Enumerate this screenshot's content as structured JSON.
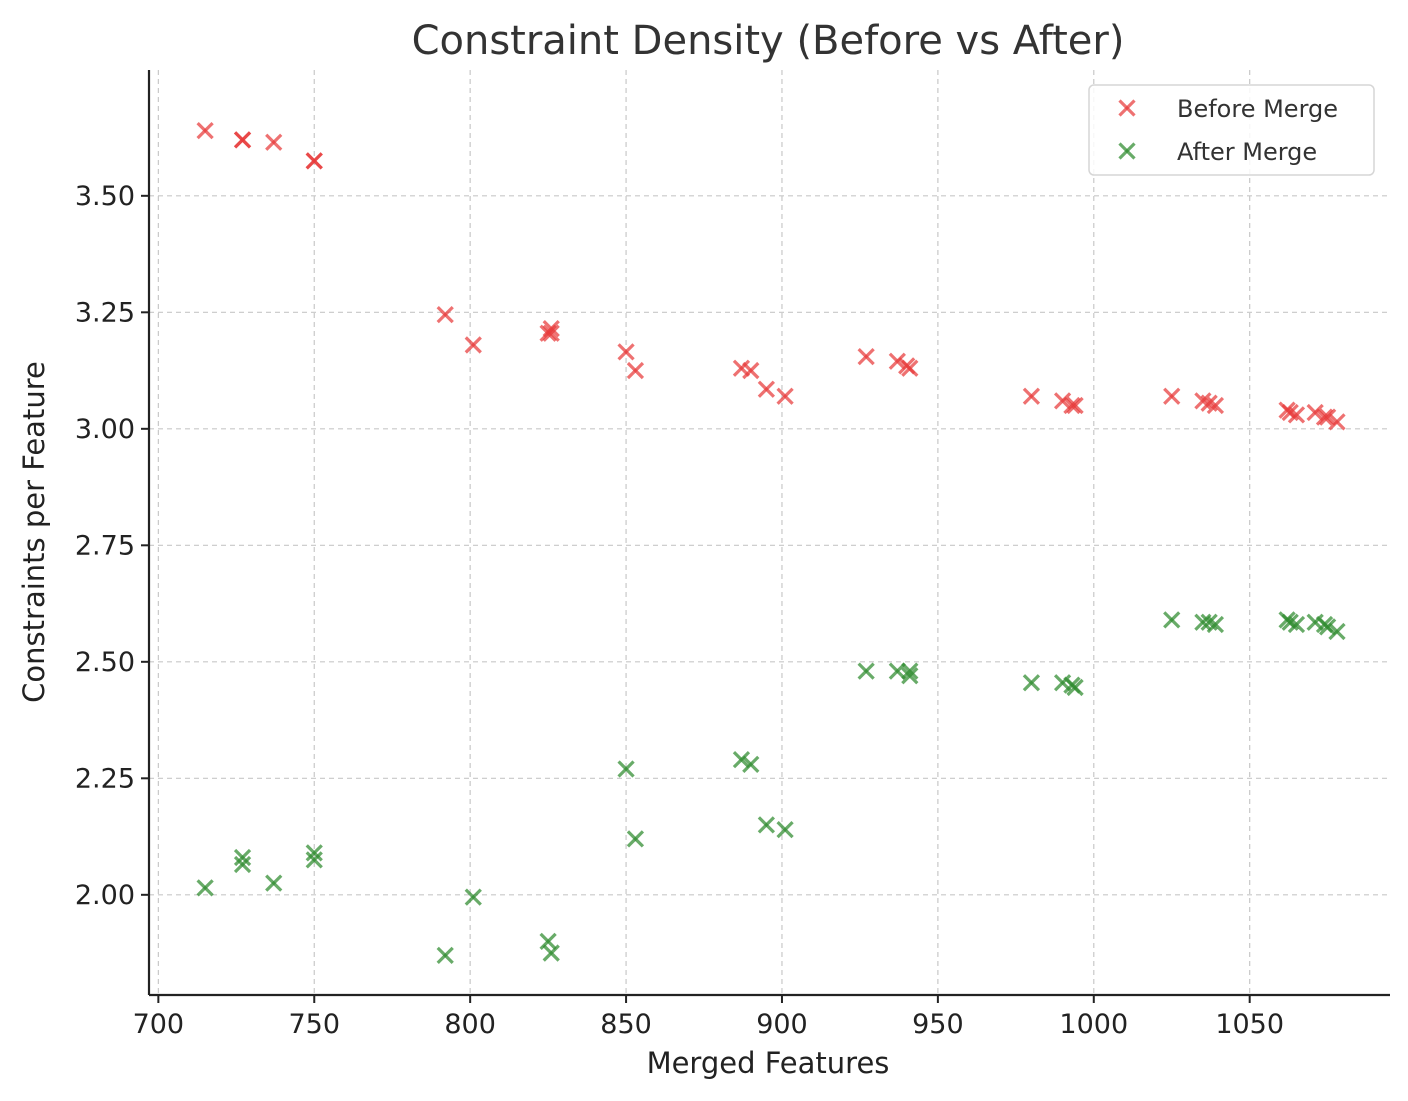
{
  "chart_data": {
    "type": "scatter",
    "title": "Constraint Density (Before vs After)",
    "xlabel": "Merged Features",
    "ylabel": "Constraints per Feature",
    "xlim": [
      697,
      1095
    ],
    "ylim": [
      1.785,
      3.77
    ],
    "xticks": [
      700,
      750,
      800,
      850,
      900,
      950,
      1000,
      1050
    ],
    "yticks": [
      2.0,
      2.25,
      2.5,
      2.75,
      3.0,
      3.25,
      3.5
    ],
    "ytick_labels": [
      "2.00",
      "2.25",
      "2.50",
      "2.75",
      "3.00",
      "3.25",
      "3.50"
    ],
    "grid": true,
    "legend_position": "top-right",
    "marker": "x",
    "series": [
      {
        "name": "Before Merge",
        "color": "#e83a3a",
        "x": [
          715,
          727,
          727,
          737,
          750,
          750,
          792,
          801,
          825,
          826,
          826,
          850,
          853,
          887,
          890,
          895,
          901,
          927,
          937,
          940,
          941,
          980,
          990,
          993,
          994,
          1025,
          1035,
          1037,
          1039,
          1062,
          1063,
          1065,
          1071,
          1074,
          1075,
          1078
        ],
        "y": [
          3.64,
          3.62,
          3.62,
          3.615,
          3.575,
          3.575,
          3.245,
          3.18,
          3.205,
          3.205,
          3.215,
          3.165,
          3.125,
          3.13,
          3.125,
          3.085,
          3.07,
          3.155,
          3.145,
          3.135,
          3.13,
          3.07,
          3.06,
          3.05,
          3.05,
          3.07,
          3.06,
          3.055,
          3.05,
          3.04,
          3.035,
          3.03,
          3.035,
          3.025,
          3.025,
          3.015
        ]
      },
      {
        "name": "After Merge",
        "color": "#2e8b2e",
        "x": [
          715,
          727,
          727,
          737,
          750,
          750,
          792,
          801,
          825,
          826,
          850,
          853,
          887,
          890,
          895,
          901,
          927,
          937,
          941,
          941,
          980,
          990,
          993,
          994,
          1025,
          1035,
          1037,
          1039,
          1062,
          1063,
          1065,
          1071,
          1074,
          1075,
          1078
        ],
        "y": [
          2.015,
          2.08,
          2.065,
          2.025,
          2.09,
          2.075,
          1.87,
          1.995,
          1.9,
          1.875,
          2.27,
          2.12,
          2.29,
          2.28,
          2.15,
          2.14,
          2.48,
          2.48,
          2.48,
          2.47,
          2.455,
          2.455,
          2.45,
          2.445,
          2.59,
          2.585,
          2.585,
          2.58,
          2.59,
          2.585,
          2.58,
          2.585,
          2.58,
          2.575,
          2.565
        ]
      }
    ]
  }
}
